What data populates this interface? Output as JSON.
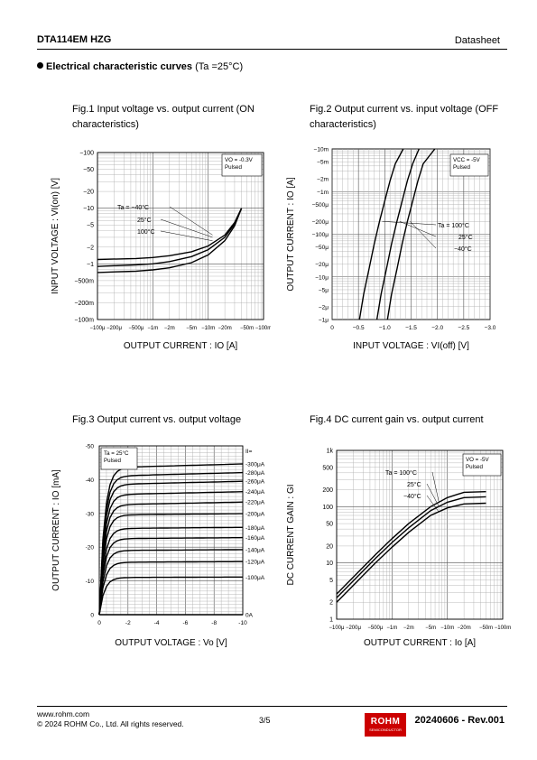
{
  "header": {
    "product": "DTA114EM HZG",
    "doc_type": "Datasheet"
  },
  "section": {
    "title": "Electrical characteristic curves",
    "condition": "(Ta =25°C)"
  },
  "chart_data": [
    {
      "id": "fig1",
      "type": "line",
      "title": "Fig.1 Input voltage vs. output current (ON characteristics)",
      "xlabel": "OUTPUT CURRENT : IO [A]",
      "ylabel": "INPUT VOLTAGE : VI(on) [V]",
      "x_scale": "log",
      "y_scale": "log",
      "xlim": [
        -0.0001,
        -0.1
      ],
      "ylim": [
        -0.1,
        -100
      ],
      "x_ticks": [
        "−100μ",
        "−200μ",
        "−500μ",
        "−1m",
        "−2m",
        "−5m",
        "−10m",
        "−20m",
        "−50m",
        "−100m"
      ],
      "y_ticks": [
        "−100m",
        "−200m",
        "−500m",
        "−1",
        "−2",
        "−5",
        "−10",
        "−20",
        "−50",
        "−100"
      ],
      "conditions": [
        "VO = -0.3V",
        "Pulsed"
      ],
      "series": [
        {
          "name": "Ta = −40°C",
          "x": [
            -0.0001,
            -0.0005,
            -0.001,
            -0.002,
            -0.005,
            -0.01,
            -0.02,
            -0.03,
            -0.04
          ],
          "y": [
            -1.2,
            -1.25,
            -1.3,
            -1.4,
            -1.65,
            -2.1,
            -3.3,
            -5.5,
            -10
          ]
        },
        {
          "name": "25°C",
          "x": [
            -0.0001,
            -0.0005,
            -0.001,
            -0.002,
            -0.005,
            -0.01,
            -0.02,
            -0.03,
            -0.04
          ],
          "y": [
            -0.9,
            -0.96,
            -1.0,
            -1.1,
            -1.35,
            -1.8,
            -3.0,
            -5.2,
            -10
          ]
        },
        {
          "name": "100°C",
          "x": [
            -0.0001,
            -0.0005,
            -0.001,
            -0.002,
            -0.005,
            -0.01,
            -0.02,
            -0.03,
            -0.04
          ],
          "y": [
            -0.7,
            -0.74,
            -0.78,
            -0.85,
            -1.05,
            -1.45,
            -2.6,
            -4.8,
            -10
          ]
        }
      ]
    },
    {
      "id": "fig2",
      "type": "line",
      "title": "Fig.2 Output current vs. input voltage (OFF characteristics)",
      "xlabel": "INPUT VOLTAGE : VI(off) [V]",
      "ylabel": "OUTPUT CURRENT : IO [A]",
      "x_scale": "linear",
      "y_scale": "log",
      "xlim": [
        0,
        -3.0
      ],
      "ylim": [
        -1e-06,
        -0.01
      ],
      "x_ticks": [
        "0",
        "−0.5",
        "−1.0",
        "−1.5",
        "−2.0",
        "−2.5",
        "−3.0"
      ],
      "y_ticks": [
        "−1μ",
        "−2μ",
        "−5μ",
        "−10μ",
        "−20μ",
        "−50μ",
        "−100μ",
        "−200μ",
        "−500μ",
        "−1m",
        "−2m",
        "−5m",
        "−10m"
      ],
      "conditions": [
        "VCC = -5V",
        "Pulsed"
      ],
      "series": [
        {
          "name": "Ta = 100°C",
          "x": [
            -0.52,
            -0.6,
            -0.7,
            -0.8,
            -0.9,
            -1.0,
            -1.1,
            -1.2,
            -1.35
          ],
          "y": [
            -1e-06,
            -4e-06,
            -1.5e-05,
            -6e-05,
            -0.0002,
            -0.0006,
            -0.0018,
            -0.0045,
            -0.01
          ]
        },
        {
          "name": "25°C",
          "x": [
            -0.85,
            -0.93,
            -1.03,
            -1.13,
            -1.23,
            -1.33,
            -1.43,
            -1.53,
            -1.65
          ],
          "y": [
            -1e-06,
            -4e-06,
            -1.5e-05,
            -6e-05,
            -0.0002,
            -0.0006,
            -0.0018,
            -0.0045,
            -0.01
          ]
        },
        {
          "name": "−40°C",
          "x": [
            -1.05,
            -1.13,
            -1.23,
            -1.33,
            -1.43,
            -1.53,
            -1.63,
            -1.73,
            -1.95
          ],
          "y": [
            -1e-06,
            -4e-06,
            -1.5e-05,
            -6e-05,
            -0.0002,
            -0.0006,
            -0.0018,
            -0.0045,
            -0.01
          ]
        }
      ]
    },
    {
      "id": "fig3",
      "type": "line",
      "title": "Fig.3 Output current vs. output voltage",
      "xlabel": "OUTPUT VOLTAGE : Vo [V]",
      "ylabel": "OUTPUT CURRENT : IO [mA]",
      "x_scale": "linear",
      "y_scale": "linear",
      "xlim": [
        0,
        -10
      ],
      "ylim": [
        0,
        -50
      ],
      "x_ticks": [
        "0",
        "-2",
        "-4",
        "-6",
        "-8",
        "-10"
      ],
      "y_ticks": [
        "0",
        "-10",
        "-20",
        "-30",
        "-40",
        "-50"
      ],
      "conditions": [
        "Ta = 25°C",
        "Pulsed"
      ],
      "param_label": "II=",
      "series": [
        {
          "name": "-300μA",
          "sat": -43.5
        },
        {
          "name": "-280μA",
          "sat": -41.0
        },
        {
          "name": "-260μA",
          "sat": -38.5
        },
        {
          "name": "-240μA",
          "sat": -35.5
        },
        {
          "name": "-220μA",
          "sat": -32.5
        },
        {
          "name": "-200μA",
          "sat": -29.5
        },
        {
          "name": "-180μA",
          "sat": -25.5
        },
        {
          "name": "-160μA",
          "sat": -22.5
        },
        {
          "name": "-140μA",
          "sat": -19.0
        },
        {
          "name": "-120μA",
          "sat": -15.5
        },
        {
          "name": "-100μA",
          "sat": -11.0
        },
        {
          "name": "0A",
          "sat": 0
        }
      ]
    },
    {
      "id": "fig4",
      "type": "line",
      "title": "Fig.4 DC current gain vs. output current",
      "xlabel": "OUTPUT CURRENT : Io [A]",
      "ylabel": "DC CURRENT GAIN : GI",
      "x_scale": "log",
      "y_scale": "log",
      "xlim": [
        -0.0001,
        -0.1
      ],
      "ylim": [
        1,
        1000
      ],
      "x_ticks": [
        "−100μ",
        "−200μ",
        "−500μ",
        "−1m",
        "−2m",
        "−5m",
        "−10m",
        "−20m",
        "−50m",
        "−100m"
      ],
      "y_ticks": [
        "1",
        "2",
        "5",
        "10",
        "20",
        "50",
        "100",
        "200",
        "500",
        "1k"
      ],
      "conditions": [
        "VO = -5V",
        "Pulsed"
      ],
      "series": [
        {
          "name": "Ta = 100°C",
          "x": [
            -0.0001,
            -0.0002,
            -0.0005,
            -0.001,
            -0.002,
            -0.005,
            -0.01,
            -0.02,
            -0.05
          ],
          "y": [
            2.8,
            5.6,
            14,
            27,
            50,
            100,
            145,
            180,
            185
          ]
        },
        {
          "name": "25°C",
          "x": [
            -0.0001,
            -0.0002,
            -0.0005,
            -0.001,
            -0.002,
            -0.005,
            -0.01,
            -0.02,
            -0.05
          ],
          "y": [
            2.4,
            4.8,
            12,
            23,
            42,
            85,
            120,
            145,
            150
          ]
        },
        {
          "name": "−40°C",
          "x": [
            -0.0001,
            -0.0002,
            -0.0005,
            -0.001,
            -0.002,
            -0.005,
            -0.01,
            -0.02,
            -0.05
          ],
          "y": [
            2.0,
            4.0,
            10,
            19,
            35,
            70,
            95,
            112,
            115
          ]
        }
      ]
    }
  ],
  "footer": {
    "website": "www.rohm.com",
    "copyright": "© 2024 ROHM Co., Ltd. All rights reserved.",
    "page": "3/5",
    "logo": "ROHM",
    "logo_sub": "SEMICONDUCTOR",
    "revision": "20240606 - Rev.001"
  }
}
